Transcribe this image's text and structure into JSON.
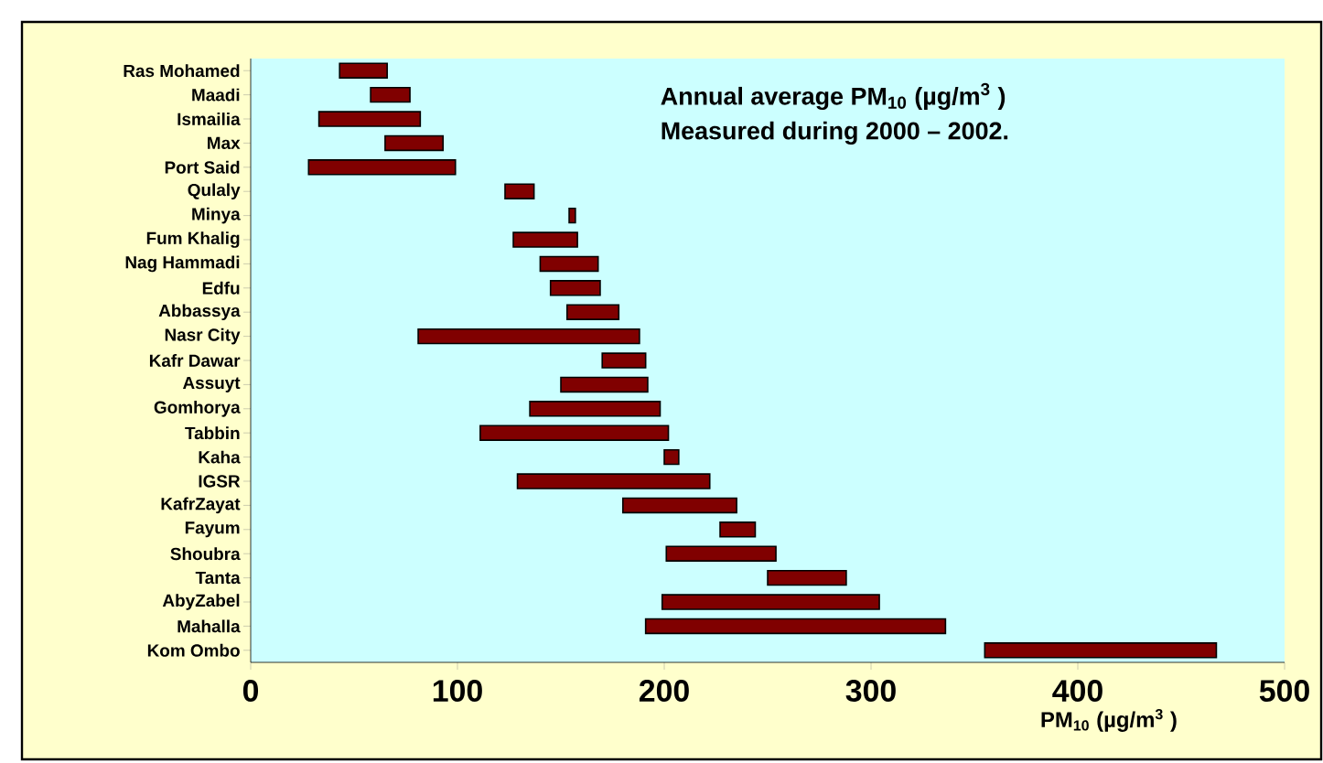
{
  "chart_data": {
    "type": "bar",
    "orientation": "horizontal",
    "categories": [
      "Ras Mohamed",
      "Maadi",
      "Ismailia",
      "Max",
      "Port Said",
      "Qulaly",
      "Minya",
      "Fum Khalig",
      "Nag Hammadi",
      "Edfu",
      "Abbassya",
      "Nasr City",
      "Kafr Dawar",
      "Assuyt",
      "Gomhorya",
      "Tabbin",
      "Kaha",
      "IGSR",
      "KafrZayat",
      "Fayum",
      "Shoubra",
      "Tanta",
      "AbyZabel",
      "Mahalla",
      "Kom Ombo"
    ],
    "base": [
      43,
      58,
      33,
      65,
      28,
      123,
      154,
      127,
      140,
      145,
      153,
      81,
      170,
      150,
      135,
      111,
      200,
      129,
      180,
      227,
      201,
      250,
      199,
      191,
      355
    ],
    "values": [
      23,
      19,
      49,
      28,
      71,
      14,
      3,
      31,
      28,
      24,
      25,
      107,
      21,
      42,
      63,
      91,
      7,
      93,
      55,
      17,
      53,
      38,
      105,
      145,
      112
    ],
    "color": "#800000",
    "xlim": [
      0,
      500
    ],
    "xticks": [
      0,
      100,
      200,
      300,
      400,
      500
    ],
    "xlabel": "PM$_{10}$ (µg/m$^{3}$ )",
    "annotations": [
      "Annual average PM$_{10}$ (µg/m$^{3}$ )",
      "Measured during 2000 – 2002."
    ]
  }
}
